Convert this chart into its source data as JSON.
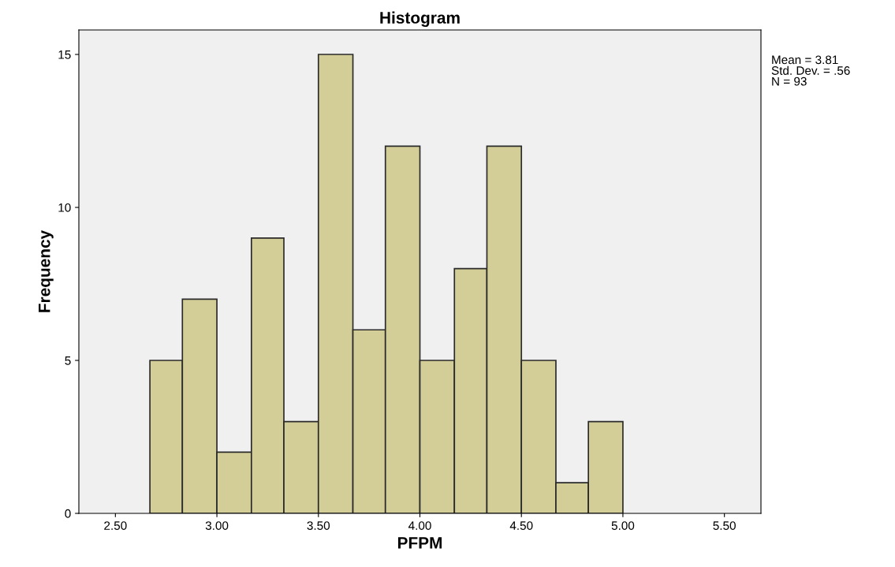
{
  "chart_data": {
    "type": "histogram",
    "title": "Histogram",
    "xlabel": "PFPM",
    "ylabel": "Frequency",
    "bins": [
      2.67,
      2.83,
      3.0,
      3.17,
      3.33,
      3.5,
      3.67,
      3.83,
      4.0,
      4.17,
      4.33,
      4.5,
      4.67,
      4.83,
      5.0
    ],
    "values": [
      5,
      7,
      2,
      9,
      3,
      15,
      6,
      12,
      5,
      8,
      12,
      5,
      1,
      3
    ],
    "color": "#d3ce97",
    "xlim": [
      2.32,
      5.68
    ],
    "xticks": [
      {
        "value": 2.5,
        "label": "2.50"
      },
      {
        "value": 3.0,
        "label": "3.00"
      },
      {
        "value": 3.5,
        "label": "3.50"
      },
      {
        "value": 4.0,
        "label": "4.00"
      },
      {
        "value": 4.5,
        "label": "4.50"
      },
      {
        "value": 5.0,
        "label": "5.00"
      },
      {
        "value": 5.5,
        "label": "5.50"
      }
    ],
    "ylim": [
      0,
      15.8
    ],
    "yticks": [
      0,
      5,
      10,
      15
    ],
    "grid": false,
    "legend": false,
    "annotations": [
      "Mean = 3.81\nStd. Dev. = .56\nN = 93"
    ]
  }
}
